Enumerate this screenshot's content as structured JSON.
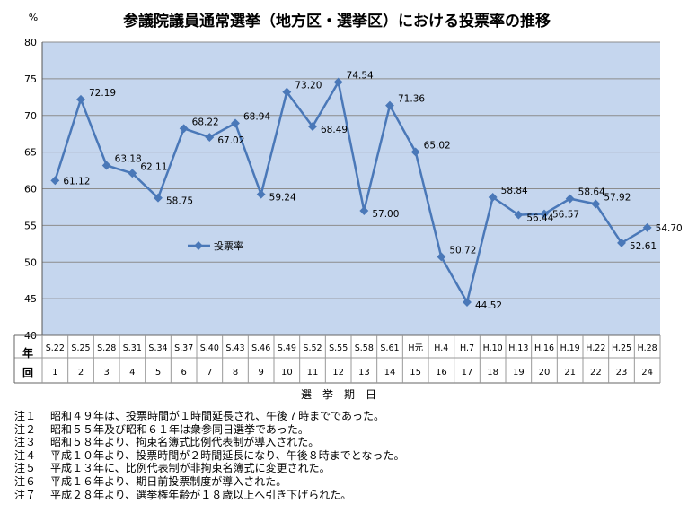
{
  "chart_data": {
    "type": "line",
    "title": "参議院議員通常選挙（地方区・選挙区）における投票率の推移",
    "ylabel": "%",
    "xlabel": "選　挙　期　日",
    "ylim": [
      40,
      80
    ],
    "yticks": [
      "40",
      "45",
      "50",
      "55",
      "60",
      "65",
      "70",
      "75",
      "80"
    ],
    "row_header_top": "年",
    "row_header_bottom": "回",
    "categories": [
      "S.22",
      "S.25",
      "S.28",
      "S.31",
      "S.34",
      "S.37",
      "S.40",
      "S.43",
      "S.46",
      "S.49",
      "S.52",
      "S.55",
      "S.58",
      "S.61",
      "H元",
      "H.4",
      "H.7",
      "H.10",
      "H.13",
      "H.16",
      "H.19",
      "H.22",
      "H.25",
      "H.28"
    ],
    "rounds": [
      "1",
      "2",
      "3",
      "4",
      "5",
      "6",
      "7",
      "8",
      "9",
      "10",
      "11",
      "12",
      "13",
      "14",
      "15",
      "16",
      "17",
      "18",
      "19",
      "20",
      "21",
      "22",
      "23",
      "24"
    ],
    "series": [
      {
        "name": "投票率",
        "values": [
          61.12,
          72.19,
          63.18,
          62.11,
          58.75,
          68.22,
          67.02,
          68.94,
          59.24,
          73.2,
          68.49,
          74.54,
          57.0,
          71.36,
          65.02,
          50.72,
          44.52,
          58.84,
          56.44,
          56.57,
          58.64,
          57.92,
          52.61,
          54.7
        ],
        "labels": [
          "61.12",
          "72.19",
          "63.18",
          "62.11",
          "58.75",
          "68.22",
          "67.02",
          "68.94",
          "59.24",
          "73.20",
          "68.49",
          "74.54",
          "57.00",
          "71.36",
          "65.02",
          "50.72",
          "44.52",
          "58.84",
          "56.44",
          "56.57",
          "58.64",
          "57.92",
          "52.61",
          "54.70"
        ]
      }
    ],
    "grid": true,
    "legend": "center-left",
    "colors": {
      "plot_bg": "#c5d6ee",
      "line": "#4a78b8",
      "grid": "#8c8c8c"
    }
  },
  "notes": [
    {
      "label": "注１",
      "text": "昭和４９年は、投票時間が１時間延長され、午後７時までであった。"
    },
    {
      "label": "注２",
      "text": "昭和５５年及び昭和６１年は衆参同日選挙であった。"
    },
    {
      "label": "注３",
      "text": "昭和５８年より、拘束名簿式比例代表制が導入された。"
    },
    {
      "label": "注４",
      "text": "平成１０年より、投票時間が２時間延長になり、午後８時までとなった。"
    },
    {
      "label": "注５",
      "text": "平成１３年に、比例代表制が非拘束名簿式に変更された。"
    },
    {
      "label": "注６",
      "text": "平成１６年より、期日前投票制度が導入された。"
    },
    {
      "label": "注７",
      "text": "平成２８年より、選挙権年齢が１８歳以上へ引き下げられた。"
    }
  ]
}
